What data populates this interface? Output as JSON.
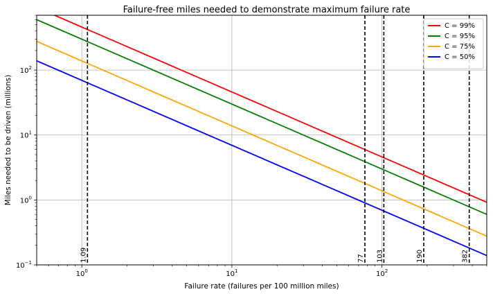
{
  "chart_data": {
    "type": "line",
    "title": "Failure-free miles needed to demonstrate maximum failure rate",
    "xlabel": "Failure rate (failures per 100 million miles)",
    "ylabel": "Miles needed to be driven (millions)",
    "xscale": "log",
    "yscale": "log",
    "xlim": [
      0.5,
      500
    ],
    "ylim": [
      0.1,
      700
    ],
    "grid": true,
    "legend_position": "top-right",
    "x_ticks": [
      {
        "value": 1,
        "label": "10",
        "exp": "0"
      },
      {
        "value": 10,
        "label": "10",
        "exp": "1"
      },
      {
        "value": 100,
        "label": "10",
        "exp": "2"
      }
    ],
    "y_ticks": [
      {
        "value": 0.1,
        "label": "10",
        "exp": "−1"
      },
      {
        "value": 1,
        "label": "10",
        "exp": "0"
      },
      {
        "value": 10,
        "label": "10",
        "exp": "1"
      },
      {
        "value": 100,
        "label": "10",
        "exp": "2"
      }
    ],
    "series": [
      {
        "name": "C = 99%",
        "color": "#ff0000",
        "x": [
          0.5,
          500
        ],
        "y": [
          921,
          0.921
        ]
      },
      {
        "name": "C = 95%",
        "color": "#008000",
        "x": [
          0.5,
          500
        ],
        "y": [
          599,
          0.599
        ]
      },
      {
        "name": "C = 75%",
        "color": "#ffa500",
        "x": [
          0.5,
          500
        ],
        "y": [
          277,
          0.277
        ]
      },
      {
        "name": "C = 50%",
        "color": "#0000ff",
        "x": [
          0.5,
          500
        ],
        "y": [
          139,
          0.139
        ]
      }
    ],
    "vlines": [
      {
        "x": 1.09,
        "label": "1.09"
      },
      {
        "x": 77,
        "label": "77"
      },
      {
        "x": 103,
        "label": "103"
      },
      {
        "x": 190,
        "label": "190"
      },
      {
        "x": 382,
        "label": "382"
      }
    ]
  }
}
